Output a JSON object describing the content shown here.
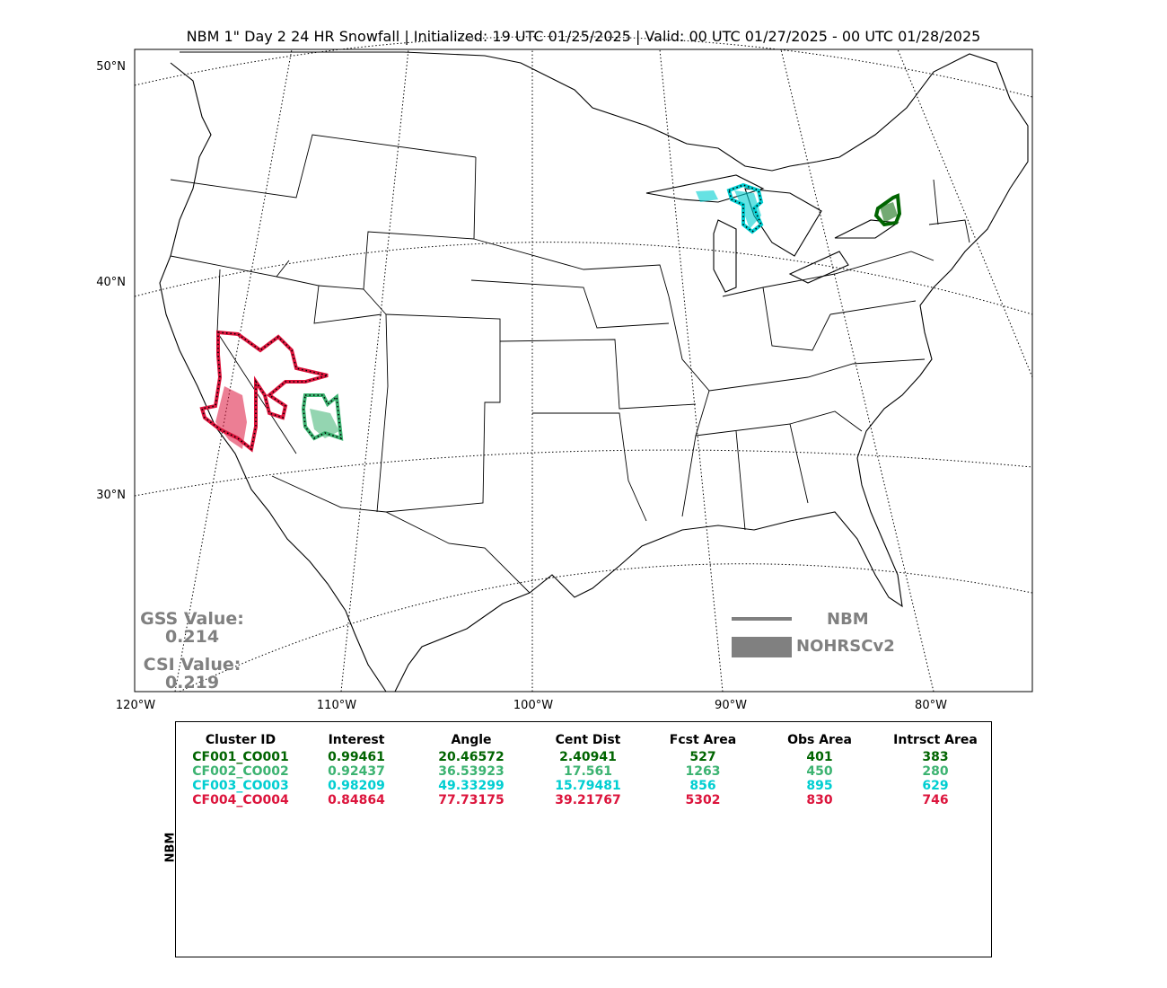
{
  "title": "NBM 1\" Day 2 24 HR Snowfall | Initialized: 19 UTC 01/25/2025 | Valid: 00 UTC 01/27/2025 - 00 UTC 01/28/2025",
  "latitude_labels": [
    "50°N",
    "40°N",
    "30°N"
  ],
  "longitude_labels": [
    "120°W",
    "110°W",
    "100°W",
    "90°W",
    "80°W"
  ],
  "scores": {
    "gss_label": "GSS Value:",
    "gss_value": "0.214",
    "csi_label": "CSI Value:",
    "csi_value": "0.219"
  },
  "legend": {
    "forecast_label": "NBM",
    "observed_label": "NOHRSCv2",
    "color": "#808080"
  },
  "table": {
    "side_label": "NBM",
    "headers": [
      "Cluster ID",
      "Interest",
      "Angle",
      "Cent Dist",
      "Fcst Area",
      "Obs Area",
      "Intrsct Area"
    ],
    "rows": [
      {
        "color": "#006400",
        "cells": [
          "CF001_CO001",
          "0.99461",
          "20.46572",
          "2.40941",
          "527",
          "401",
          "383"
        ]
      },
      {
        "color": "#3cb371",
        "cells": [
          "CF002_CO002",
          "0.92437",
          "36.53923",
          "17.561",
          "1263",
          "450",
          "280"
        ]
      },
      {
        "color": "#00ced1",
        "cells": [
          "CF003_CO003",
          "0.98209",
          "49.33299",
          "15.79481",
          "856",
          "895",
          "629"
        ]
      },
      {
        "color": "#dc143c",
        "cells": [
          "CF004_CO004",
          "0.84864",
          "77.73175",
          "39.21767",
          "5302",
          "830",
          "746"
        ]
      }
    ]
  }
}
